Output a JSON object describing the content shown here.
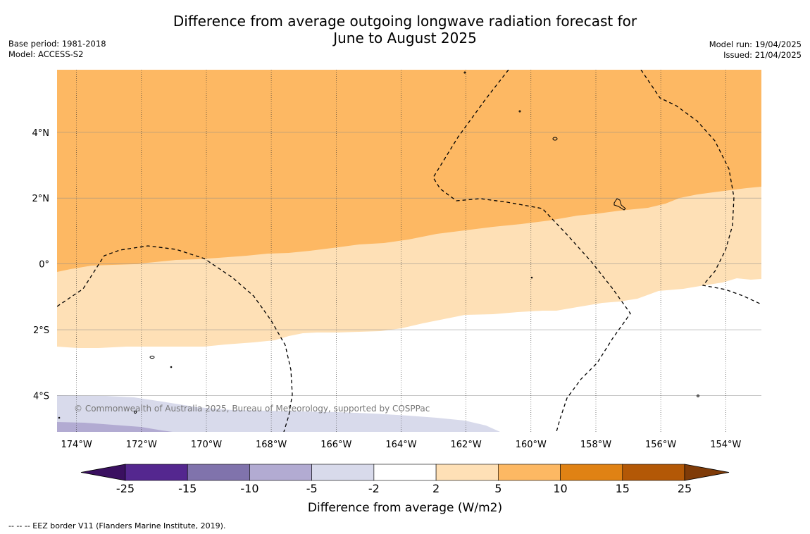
{
  "title": {
    "line1": "Difference from average outgoing longwave radiation forecast for",
    "line2": "June to August 2025"
  },
  "meta": {
    "base_period": "Base period: 1981-2018",
    "model": "Model: ACCESS-S2",
    "model_run": "Model run: 19/04/2025",
    "issued": "Issued: 21/04/2025"
  },
  "copyright": "© Commonwealth of Australia 2025, Bureau of Meteorology, supported by COSPPac",
  "footnote": "--  --  -- EEZ border V11 (Flanders Marine Institute, 2019).",
  "map": {
    "lat_range": [
      -5.1,
      5.9
    ],
    "lon_range": [
      -174.6,
      -152.9
    ],
    "lat_ticks": [
      {
        "value": 4,
        "label": "4°N"
      },
      {
        "value": 2,
        "label": "2°N"
      },
      {
        "value": 0,
        "label": "0°"
      },
      {
        "value": -2,
        "label": "2°S"
      },
      {
        "value": -4,
        "label": "4°S"
      }
    ],
    "lon_ticks": [
      {
        "value": -174,
        "label": "174°W"
      },
      {
        "value": -172,
        "label": "172°W"
      },
      {
        "value": -170,
        "label": "170°W"
      },
      {
        "value": -168,
        "label": "168°W"
      },
      {
        "value": -166,
        "label": "166°W"
      },
      {
        "value": -164,
        "label": "164°W"
      },
      {
        "value": -162,
        "label": "162°W"
      },
      {
        "value": -160,
        "label": "160°W"
      },
      {
        "value": -158,
        "label": "158°W"
      },
      {
        "value": -156,
        "label": "156°W"
      },
      {
        "value": -154,
        "label": "154°W"
      }
    ]
  },
  "colorbar": {
    "label": "Difference from average (W/m2)",
    "ticks": [
      "-25",
      "-15",
      "-10",
      "-5",
      "-2",
      "2",
      "5",
      "10",
      "15",
      "25"
    ],
    "colors": [
      "#3a1060",
      "#54278f",
      "#8073ac",
      "#b2abd2",
      "#d8daeb",
      "#ffffff",
      "#fee0b6",
      "#fdb863",
      "#e08214",
      "#b35806",
      "#7f3b08"
    ]
  }
}
